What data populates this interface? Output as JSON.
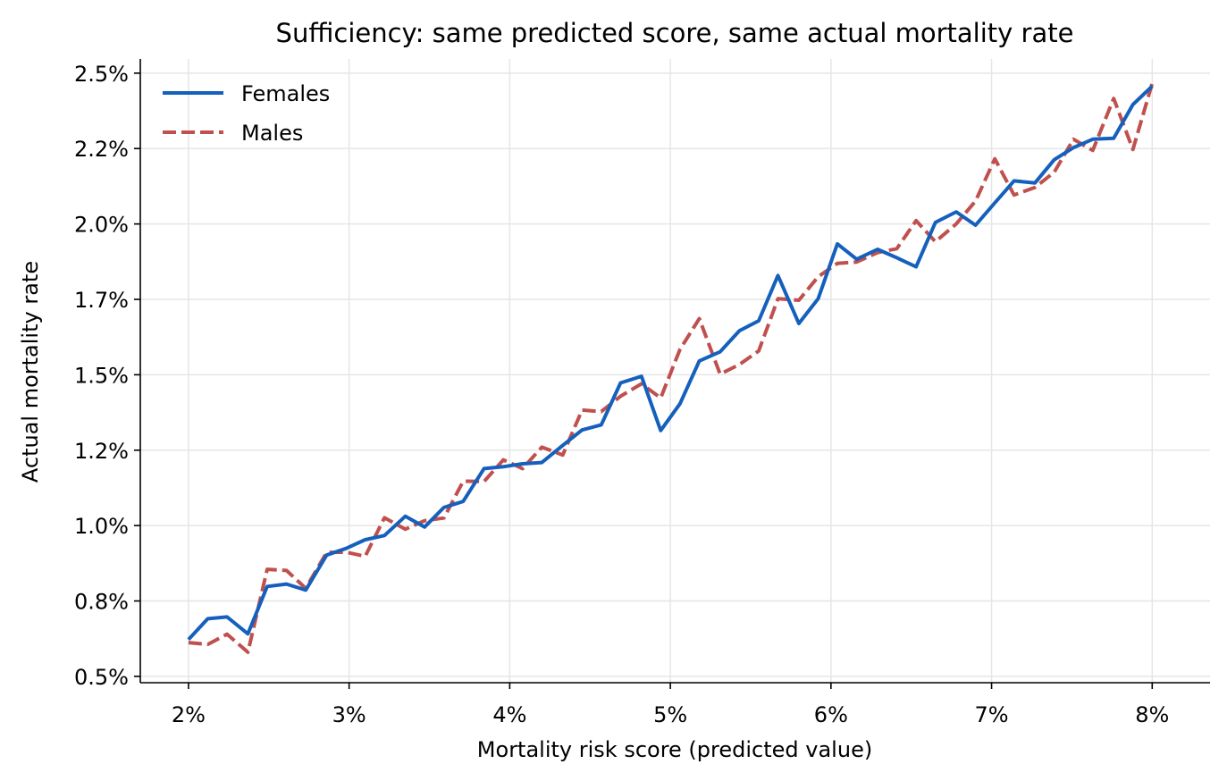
{
  "chart_data": {
    "type": "line",
    "title": "Sufficiency: same predicted score, same actual mortality rate",
    "xlabel": "Mortality risk score (predicted value)",
    "ylabel": "Actual mortality rate",
    "xlim": [
      0.017,
      0.0836
    ],
    "ylim": [
      0.00479,
      0.02547
    ],
    "x_ticks": [
      {
        "value": 0.02,
        "label": "2%"
      },
      {
        "value": 0.03,
        "label": "3%"
      },
      {
        "value": 0.04,
        "label": "4%"
      },
      {
        "value": 0.05,
        "label": "5%"
      },
      {
        "value": 0.06,
        "label": "6%"
      },
      {
        "value": 0.07,
        "label": "7%"
      },
      {
        "value": 0.08,
        "label": "8%"
      }
    ],
    "y_ticks": [
      {
        "value": 0.005,
        "label": "0.5%"
      },
      {
        "value": 0.0075,
        "label": "0.8%"
      },
      {
        "value": 0.01,
        "label": "1.0%"
      },
      {
        "value": 0.0125,
        "label": "1.2%"
      },
      {
        "value": 0.015,
        "label": "1.5%"
      },
      {
        "value": 0.0175,
        "label": "1.7%"
      },
      {
        "value": 0.02,
        "label": "2.0%"
      },
      {
        "value": 0.0225,
        "label": "2.2%"
      },
      {
        "value": 0.025,
        "label": "2.5%"
      }
    ],
    "grid": true,
    "legend_position": "top-left",
    "x": [
      0.02,
      0.0212,
      0.0224,
      0.0237,
      0.0249,
      0.0261,
      0.0273,
      0.0286,
      0.0298,
      0.031,
      0.0322,
      0.0335,
      0.0347,
      0.0359,
      0.0371,
      0.0384,
      0.0396,
      0.0408,
      0.042,
      0.0433,
      0.0445,
      0.0457,
      0.0469,
      0.0482,
      0.0494,
      0.0506,
      0.0518,
      0.0531,
      0.0543,
      0.0555,
      0.0567,
      0.058,
      0.0592,
      0.0604,
      0.0616,
      0.0629,
      0.0641,
      0.0653,
      0.0665,
      0.0678,
      0.069,
      0.0702,
      0.0714,
      0.0727,
      0.0739,
      0.0751,
      0.0763,
      0.0776,
      0.0788,
      0.08
    ],
    "series": [
      {
        "name": "Females",
        "color": "#1560bd",
        "style": "solid",
        "values": [
          0.00622,
          0.00691,
          0.00697,
          0.00641,
          0.00798,
          0.00806,
          0.00786,
          0.00902,
          0.00924,
          0.00953,
          0.00967,
          0.01031,
          0.00995,
          0.0106,
          0.0108,
          0.01189,
          0.01195,
          0.01205,
          0.01209,
          0.01266,
          0.01317,
          0.01334,
          0.01473,
          0.01495,
          0.01315,
          0.01404,
          0.01546,
          0.01576,
          0.01646,
          0.01679,
          0.01829,
          0.0167,
          0.01752,
          0.01934,
          0.01883,
          0.01916,
          0.01888,
          0.01858,
          0.02005,
          0.0204,
          0.01996,
          0.0207,
          0.02143,
          0.02136,
          0.02213,
          0.02253,
          0.02281,
          0.02284,
          0.02396,
          0.02457
        ]
      },
      {
        "name": "Males",
        "color": "#c0504d",
        "style": "dashed",
        "values": [
          0.00612,
          0.00606,
          0.0064,
          0.0058,
          0.00855,
          0.00851,
          0.00792,
          0.00911,
          0.00912,
          0.00898,
          0.01026,
          0.00988,
          0.01016,
          0.01025,
          0.01147,
          0.01146,
          0.01218,
          0.01189,
          0.0126,
          0.01234,
          0.01383,
          0.01378,
          0.01429,
          0.0147,
          0.01423,
          0.01584,
          0.01686,
          0.01502,
          0.01534,
          0.01579,
          0.01752,
          0.01747,
          0.01825,
          0.01869,
          0.01874,
          0.01905,
          0.01918,
          0.02011,
          0.01941,
          0.02,
          0.02076,
          0.02216,
          0.02096,
          0.02121,
          0.02172,
          0.02281,
          0.02244,
          0.02416,
          0.02247,
          0.02466
        ]
      }
    ]
  }
}
